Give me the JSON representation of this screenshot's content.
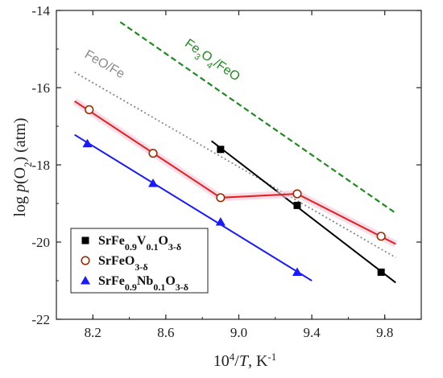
{
  "chart_data": {
    "type": "scatter",
    "title": "",
    "xlabel": "10⁴/T, K⁻¹",
    "ylabel": "log p(O₂) (atm)",
    "xlim": [
      8.0,
      10.0
    ],
    "ylim": [
      -22,
      -14
    ],
    "xticks": [
      8.2,
      8.6,
      9.0,
      9.4,
      9.8
    ],
    "yticks": [
      -22,
      -20,
      -18,
      -16,
      -14
    ],
    "x_tick_labels": [
      "8.2",
      "8.6",
      "9.0",
      "9.4",
      "9.8"
    ],
    "y_tick_labels": [
      "-22",
      "-20",
      "-18",
      "-16",
      "-14"
    ],
    "grid": false,
    "legend_position": "bottom-left",
    "series": [
      {
        "name": "SrFe0.9V0.1O3-δ",
        "marker": "square",
        "color": "#000000",
        "points": [
          [
            8.9,
            -17.6
          ],
          [
            9.32,
            -19.05
          ],
          [
            9.78,
            -20.78
          ]
        ],
        "fit_line": [
          [
            8.85,
            -17.38
          ],
          [
            9.86,
            -21.05
          ]
        ]
      },
      {
        "name": "SrFeO3-δ",
        "marker": "circle-open",
        "color": "#9b2d00",
        "points": [
          [
            8.18,
            -16.57
          ],
          [
            8.53,
            -17.7
          ],
          [
            8.9,
            -18.85
          ],
          [
            9.32,
            -18.75
          ],
          [
            9.78,
            -19.85
          ]
        ],
        "fit_line": [
          [
            8.1,
            -16.35
          ],
          [
            8.9,
            -18.85
          ],
          [
            9.32,
            -18.75
          ],
          [
            9.86,
            -20.05
          ]
        ],
        "fit_color": "#e02020"
      },
      {
        "name": "SrFe0.9Nb0.1O3-δ",
        "marker": "triangle",
        "color": "#1a1aff",
        "points": [
          [
            8.17,
            -17.45
          ],
          [
            8.53,
            -18.48
          ],
          [
            8.9,
            -19.48
          ],
          [
            9.32,
            -20.78
          ]
        ],
        "fit_line": [
          [
            8.1,
            -17.22
          ],
          [
            9.4,
            -21.0
          ]
        ]
      }
    ],
    "reference_lines": [
      {
        "label": "Fe3O4/FeO",
        "color": "#1f8a1f",
        "style": "dashed",
        "points": [
          [
            8.35,
            -14.3
          ],
          [
            9.86,
            -19.25
          ]
        ]
      },
      {
        "label": "FeO/Fe",
        "color": "#888888",
        "style": "dotted",
        "points": [
          [
            8.1,
            -15.6
          ],
          [
            9.86,
            -20.4
          ]
        ]
      }
    ],
    "legend": [
      {
        "series": 0,
        "base": "SrFe",
        "sub1": "0.9",
        "mid": "V",
        "sub2": "0.1",
        "tail": "O",
        "sub3": "3-δ"
      },
      {
        "series": 1,
        "base": "SrFeO",
        "sub1": "3-δ"
      },
      {
        "series": 2,
        "base": "SrFe",
        "sub1": "0.9",
        "mid": "Nb",
        "sub2": "0.1",
        "tail": "O",
        "sub3": "3-δ"
      }
    ]
  }
}
